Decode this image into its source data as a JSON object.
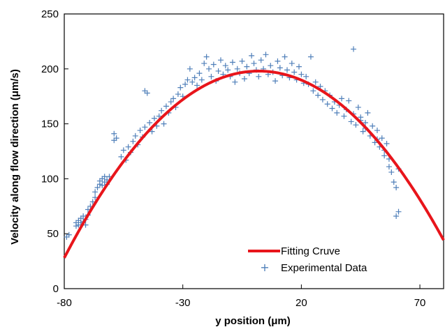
{
  "chart_data": {
    "type": "scatter",
    "xlabel": "y position (μm)",
    "ylabel": "Velocity  along flow direction (μm/s)",
    "xlim": [
      -80,
      80
    ],
    "ylim": [
      0,
      250
    ],
    "x_ticks": [
      -80,
      -30,
      20,
      70
    ],
    "y_ticks": [
      0,
      50,
      100,
      150,
      200,
      250
    ],
    "grid": false,
    "legend_position": "bottom-right",
    "colors": {
      "fit": "#e8151b",
      "points": "#4f7fb9"
    },
    "series": [
      {
        "name": "Fitting Cruve",
        "kind": "line",
        "model": "parabola",
        "vertex": [
          2,
          198
        ],
        "x_intercepts": [
          -86.5,
          90.5
        ]
      },
      {
        "name": "Experimental Data",
        "kind": "scatter",
        "marker": "+",
        "points": [
          [
            -79,
            47
          ],
          [
            -78,
            49
          ],
          [
            -75,
            57
          ],
          [
            -75,
            60
          ],
          [
            -74,
            62
          ],
          [
            -74,
            58
          ],
          [
            -73,
            64
          ],
          [
            -73,
            60
          ],
          [
            -72,
            66
          ],
          [
            -72,
            61
          ],
          [
            -71,
            63
          ],
          [
            -71,
            58
          ],
          [
            -70,
            67
          ],
          [
            -70,
            72
          ],
          [
            -69,
            75
          ],
          [
            -68,
            79
          ],
          [
            -67,
            83
          ],
          [
            -67,
            88
          ],
          [
            -66,
            92
          ],
          [
            -65,
            95
          ],
          [
            -65,
            98
          ],
          [
            -64,
            100
          ],
          [
            -64,
            94
          ],
          [
            -63,
            97
          ],
          [
            -63,
            102
          ],
          [
            -62,
            95
          ],
          [
            -62,
            99
          ],
          [
            -61,
            102
          ],
          [
            -59,
            135
          ],
          [
            -59,
            141
          ],
          [
            -58,
            137
          ],
          [
            -56,
            120
          ],
          [
            -55,
            126
          ],
          [
            -54,
            117
          ],
          [
            -53,
            129
          ],
          [
            -52,
            124
          ],
          [
            -51,
            134
          ],
          [
            -50,
            139
          ],
          [
            -49,
            131
          ],
          [
            -48,
            144
          ],
          [
            -47,
            138
          ],
          [
            -46,
            147
          ],
          [
            -46,
            180
          ],
          [
            -45,
            178
          ],
          [
            -44,
            151
          ],
          [
            -43,
            143
          ],
          [
            -42,
            155
          ],
          [
            -41,
            148
          ],
          [
            -40,
            157
          ],
          [
            -39,
            162
          ],
          [
            -38,
            150
          ],
          [
            -37,
            166
          ],
          [
            -36,
            160
          ],
          [
            -35,
            170
          ],
          [
            -34,
            173
          ],
          [
            -33,
            165
          ],
          [
            -32,
            177
          ],
          [
            -31,
            183
          ],
          [
            -30,
            175
          ],
          [
            -29,
            186
          ],
          [
            -28,
            190
          ],
          [
            -27,
            200
          ],
          [
            -26,
            188
          ],
          [
            -25,
            192
          ],
          [
            -24,
            185
          ],
          [
            -23,
            196
          ],
          [
            -22,
            190
          ],
          [
            -21,
            205
          ],
          [
            -20,
            211
          ],
          [
            -19,
            200
          ],
          [
            -18,
            193
          ],
          [
            -17,
            204
          ],
          [
            -16,
            189
          ],
          [
            -15,
            198
          ],
          [
            -14,
            208
          ],
          [
            -13,
            195
          ],
          [
            -12,
            203
          ],
          [
            -11,
            199
          ],
          [
            -10,
            193
          ],
          [
            -9,
            206
          ],
          [
            -8,
            188
          ],
          [
            -7,
            200
          ],
          [
            -6,
            196
          ],
          [
            -5,
            207
          ],
          [
            -4,
            191
          ],
          [
            -3,
            202
          ],
          [
            -2,
            196
          ],
          [
            -1,
            212
          ],
          [
            0,
            205
          ],
          [
            1,
            199
          ],
          [
            2,
            193
          ],
          [
            3,
            208
          ],
          [
            4,
            200
          ],
          [
            5,
            213
          ],
          [
            6,
            195
          ],
          [
            7,
            203
          ],
          [
            8,
            197
          ],
          [
            9,
            189
          ],
          [
            10,
            207
          ],
          [
            11,
            201
          ],
          [
            12,
            194
          ],
          [
            13,
            211
          ],
          [
            14,
            199
          ],
          [
            15,
            192
          ],
          [
            16,
            205
          ],
          [
            17,
            197
          ],
          [
            18,
            190
          ],
          [
            19,
            202
          ],
          [
            20,
            195
          ],
          [
            21,
            187
          ],
          [
            22,
            193
          ],
          [
            23,
            186
          ],
          [
            24,
            211
          ],
          [
            25,
            180
          ],
          [
            26,
            188
          ],
          [
            27,
            176
          ],
          [
            28,
            184
          ],
          [
            29,
            172
          ],
          [
            30,
            180
          ],
          [
            31,
            168
          ],
          [
            32,
            176
          ],
          [
            33,
            164
          ],
          [
            34,
            170
          ],
          [
            35,
            160
          ],
          [
            36,
            167
          ],
          [
            37,
            173
          ],
          [
            38,
            157
          ],
          [
            39,
            163
          ],
          [
            40,
            171
          ],
          [
            41,
            152
          ],
          [
            42,
            159
          ],
          [
            43,
            149
          ],
          [
            44,
            165
          ],
          [
            45,
            156
          ],
          [
            46,
            143
          ],
          [
            47,
            151
          ],
          [
            48,
            160
          ],
          [
            49,
            139
          ],
          [
            50,
            148
          ],
          [
            51,
            133
          ],
          [
            52,
            144
          ],
          [
            53,
            129
          ],
          [
            54,
            137
          ],
          [
            55,
            126
          ],
          [
            56,
            132
          ],
          [
            57,
            118
          ],
          [
            58,
            106
          ],
          [
            59,
            97
          ],
          [
            60,
            92
          ],
          [
            61,
            109
          ],
          [
            42,
            218
          ],
          [
            45,
            153
          ],
          [
            47,
            146
          ],
          [
            52,
            136
          ],
          [
            60,
            66
          ],
          [
            61,
            70
          ],
          [
            55,
            121
          ],
          [
            57,
            111
          ]
        ]
      }
    ]
  }
}
